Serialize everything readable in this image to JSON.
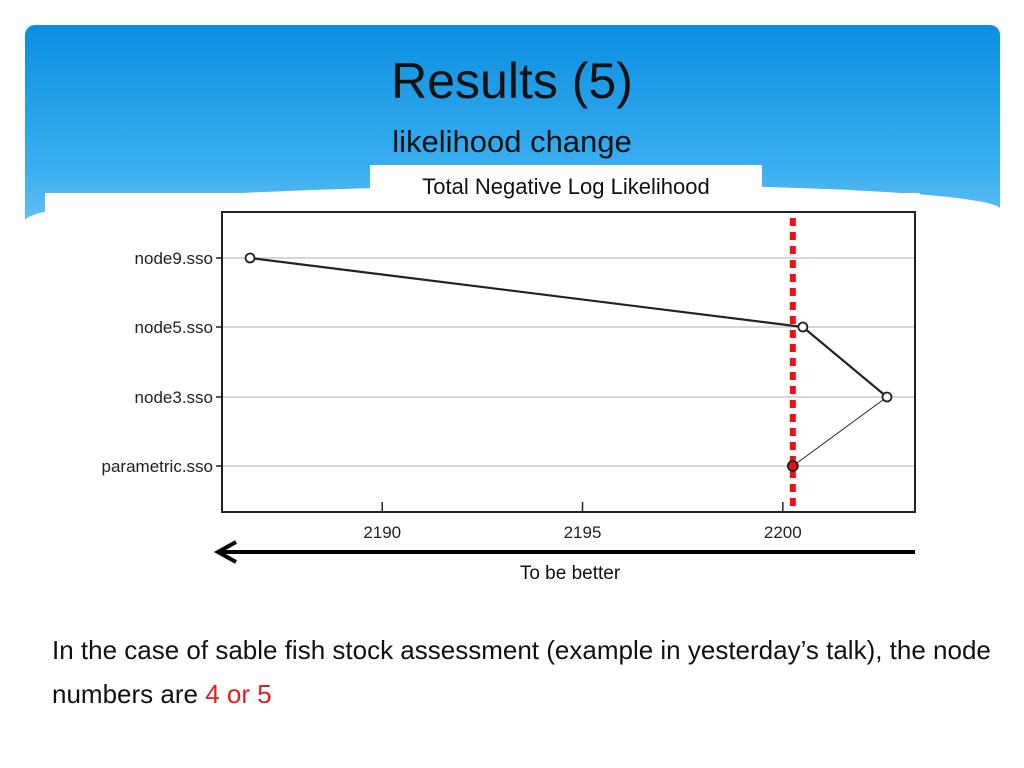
{
  "slide": {
    "title": "Results (5)",
    "subtitle": "likelihood change",
    "arrow_label": "To be better",
    "body_text": "In the case of sable fish stock assessment (example in yesterday’s talk),  the node numbers are ",
    "body_highlight": "4 or 5",
    "highlight_color": "#e02020",
    "header_color": "#1a9ae6"
  },
  "chart_data": {
    "type": "scatter",
    "title": "Total Negative Log Likelihood",
    "categories": [
      "node9.sso",
      "node5.sso",
      "node3.sso",
      "parametric.sso"
    ],
    "values": [
      2186.7,
      2200.5,
      2202.6,
      2200.25
    ],
    "highlighted": "parametric.sso",
    "reference_line": 2200.25,
    "reference_line_color": "#ee1111",
    "xticks": [
      2190,
      2195,
      2200
    ],
    "xlim": [
      2186.0,
      2203.3
    ],
    "xlabel": "",
    "ylabel": "",
    "grid": "horizontal"
  }
}
